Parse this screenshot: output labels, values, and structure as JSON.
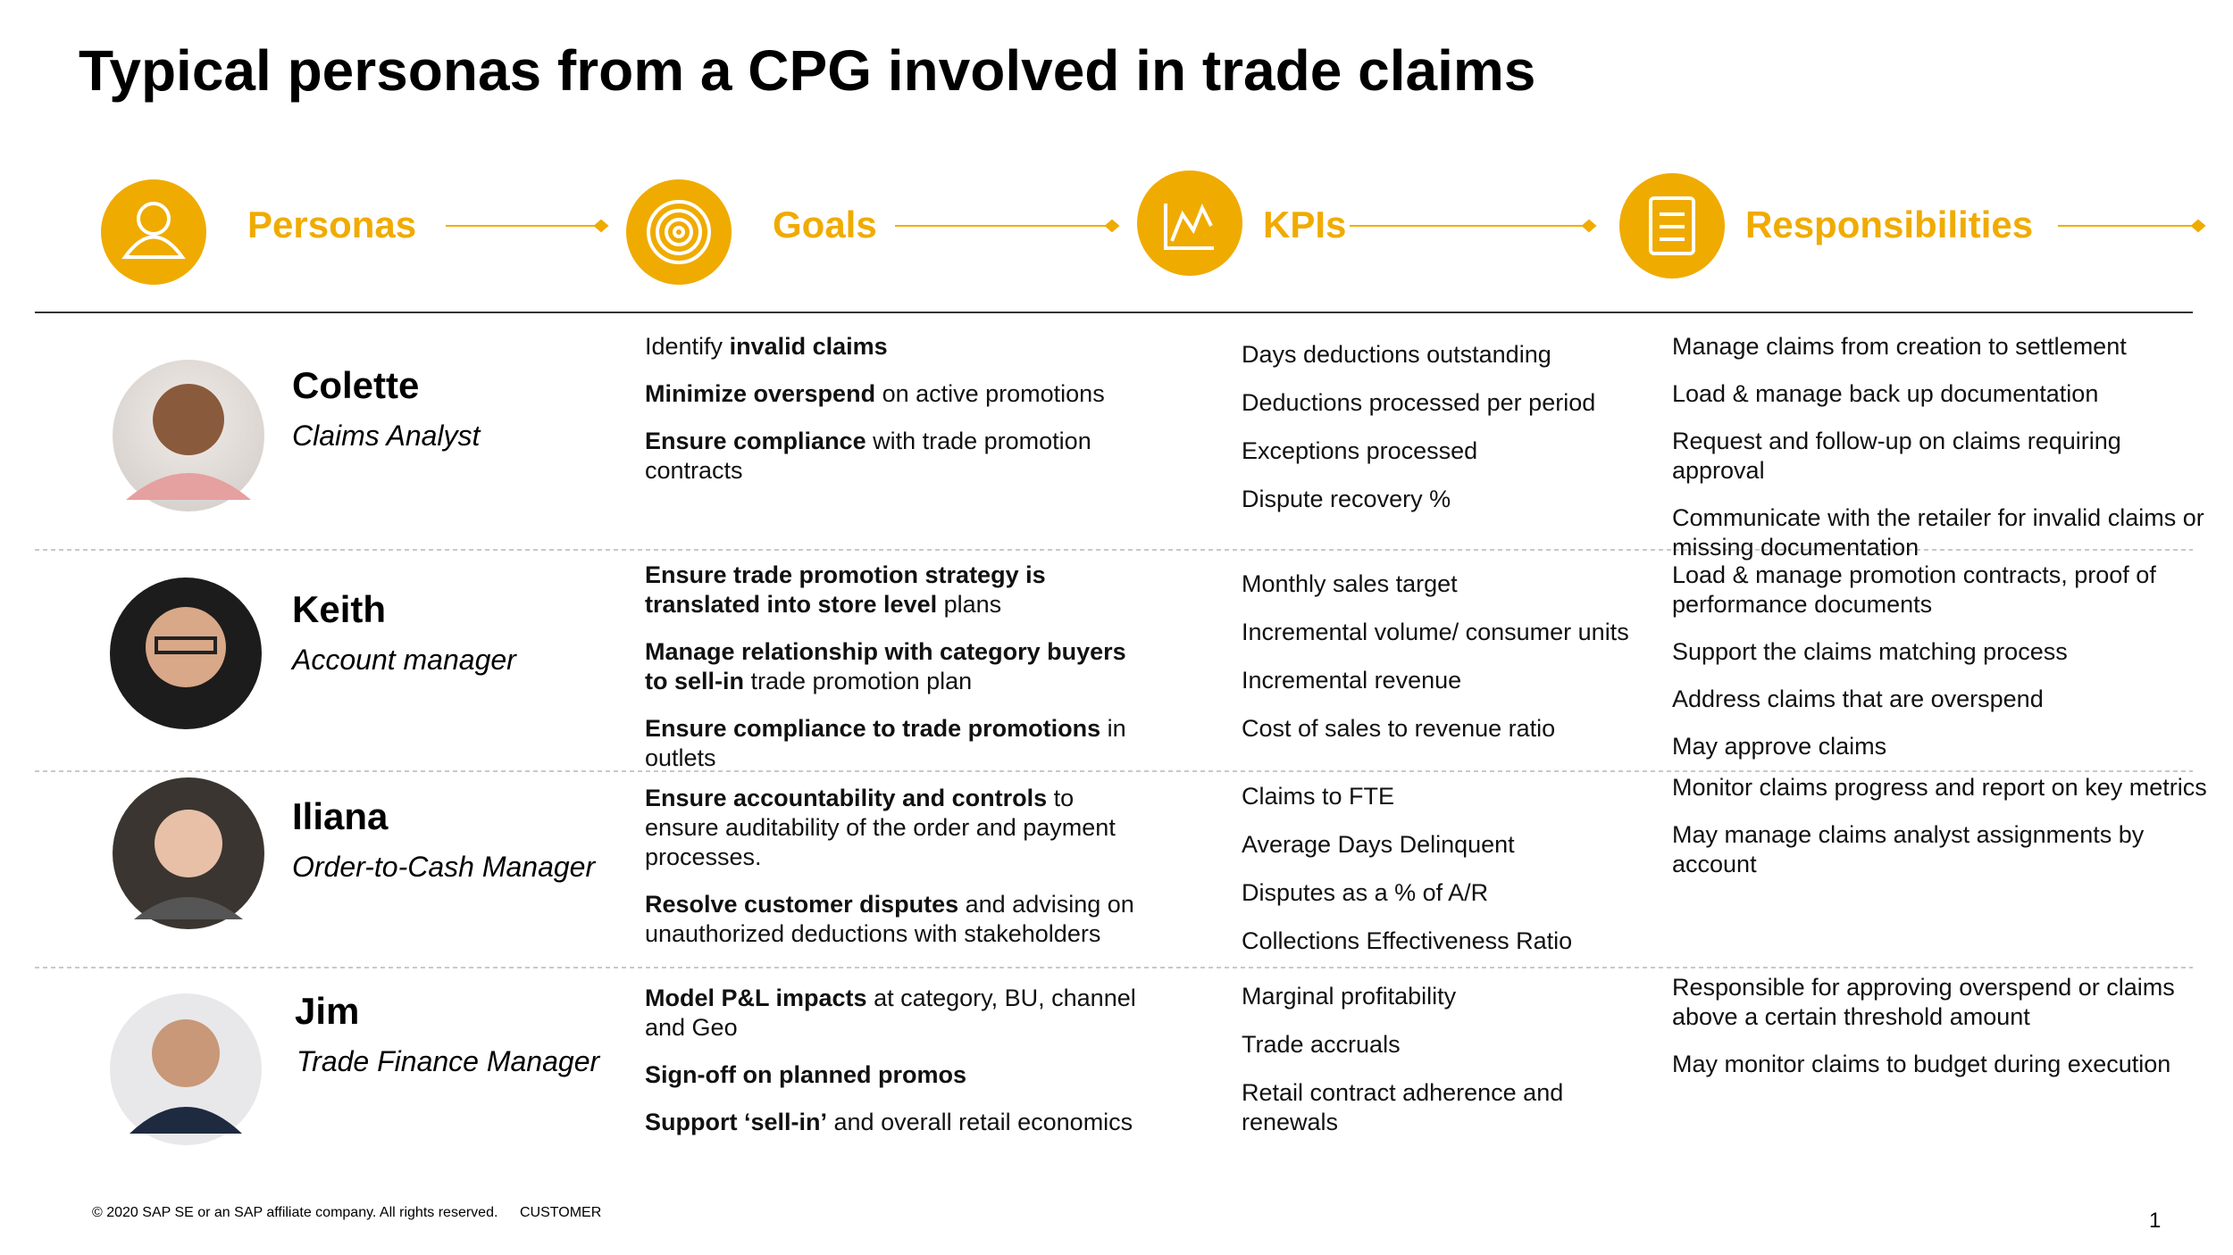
{
  "title": "Typical personas from a CPG involved in trade claims",
  "header": {
    "steps": [
      "Personas",
      "Goals",
      "KPIs",
      "Responsibilities"
    ]
  },
  "personas": [
    {
      "name": "Colette",
      "role": "Claims Analyst",
      "goals": [
        [
          {
            "text": "Identify ",
            "bold": false
          },
          {
            "text": "invalid claims",
            "bold": true
          }
        ],
        [
          {
            "text": "Minimize overspend",
            "bold": true
          },
          {
            "text": " on active promotions",
            "bold": false
          }
        ],
        [
          {
            "text": "Ensure compliance",
            "bold": true
          },
          {
            "text": " with trade promotion contracts",
            "bold": false
          }
        ]
      ],
      "kpis": [
        "Days deductions outstanding",
        "Deductions processed per period",
        "Exceptions processed",
        "Dispute recovery %"
      ],
      "responsibilities": [
        "Manage claims from creation to settlement",
        "Load & manage back up documentation",
        "Request and follow-up on claims requiring approval",
        "Communicate with the retailer for invalid claims or missing documentation"
      ]
    },
    {
      "name": "Keith",
      "role": "Account manager",
      "goals": [
        [
          {
            "text": "Ensure trade promotion strategy is translated into store level",
            "bold": true
          },
          {
            "text": " plans",
            "bold": false
          }
        ],
        [
          {
            "text": "Manage relationship with category buyers to sell-in",
            "bold": true
          },
          {
            "text": " trade promotion plan",
            "bold": false
          }
        ],
        [
          {
            "text": "Ensure compliance to trade promotions",
            "bold": true
          },
          {
            "text": " in outlets",
            "bold": false
          }
        ]
      ],
      "kpis": [
        "Monthly sales target",
        "Incremental volume/ consumer units",
        "Incremental revenue",
        "Cost of sales to revenue ratio"
      ],
      "responsibilities": [
        "Load & manage promotion contracts, proof of performance documents",
        "Support the claims matching process",
        "Address claims that are overspend",
        "May approve claims"
      ]
    },
    {
      "name": "Iliana",
      "role": "Order-to-Cash Manager",
      "goals": [
        [
          {
            "text": "Ensure accountability and controls",
            "bold": true
          },
          {
            "text": " to ensure auditability of the order and payment processes.",
            "bold": false
          }
        ],
        [
          {
            "text": "Resolve customer disputes",
            "bold": true
          },
          {
            "text": " and advising on unauthorized deductions with stakeholders",
            "bold": false
          }
        ]
      ],
      "kpis": [
        "Claims to FTE",
        "Average Days Delinquent",
        "Disputes as a % of A/R",
        "Collections Effectiveness Ratio"
      ],
      "responsibilities": [
        "Monitor claims progress and report on key metrics",
        "May manage claims analyst assignments by account"
      ]
    },
    {
      "name": "Jim",
      "role": "Trade Finance Manager",
      "goals": [
        [
          {
            "text": "Model P&L impacts",
            "bold": true
          },
          {
            "text": " at category, BU, channel and Geo",
            "bold": false
          }
        ],
        [
          {
            "text": "Sign-off on planned promos",
            "bold": true
          }
        ],
        [
          {
            "text": "Support ‘sell-in’",
            "bold": true
          },
          {
            "text": " and overall retail economics",
            "bold": false
          }
        ]
      ],
      "kpis": [
        "Marginal profitability",
        "Trade accruals",
        "Retail contract adherence and renewals"
      ],
      "responsibilities": [
        "Responsible for approving overspend or claims above a certain threshold amount",
        "May monitor claims to budget during execution"
      ]
    }
  ],
  "footer": {
    "copyright": "© 2020 SAP SE or an SAP affiliate company. All rights reserved.",
    "classification": "CUSTOMER",
    "page_number": "1"
  }
}
